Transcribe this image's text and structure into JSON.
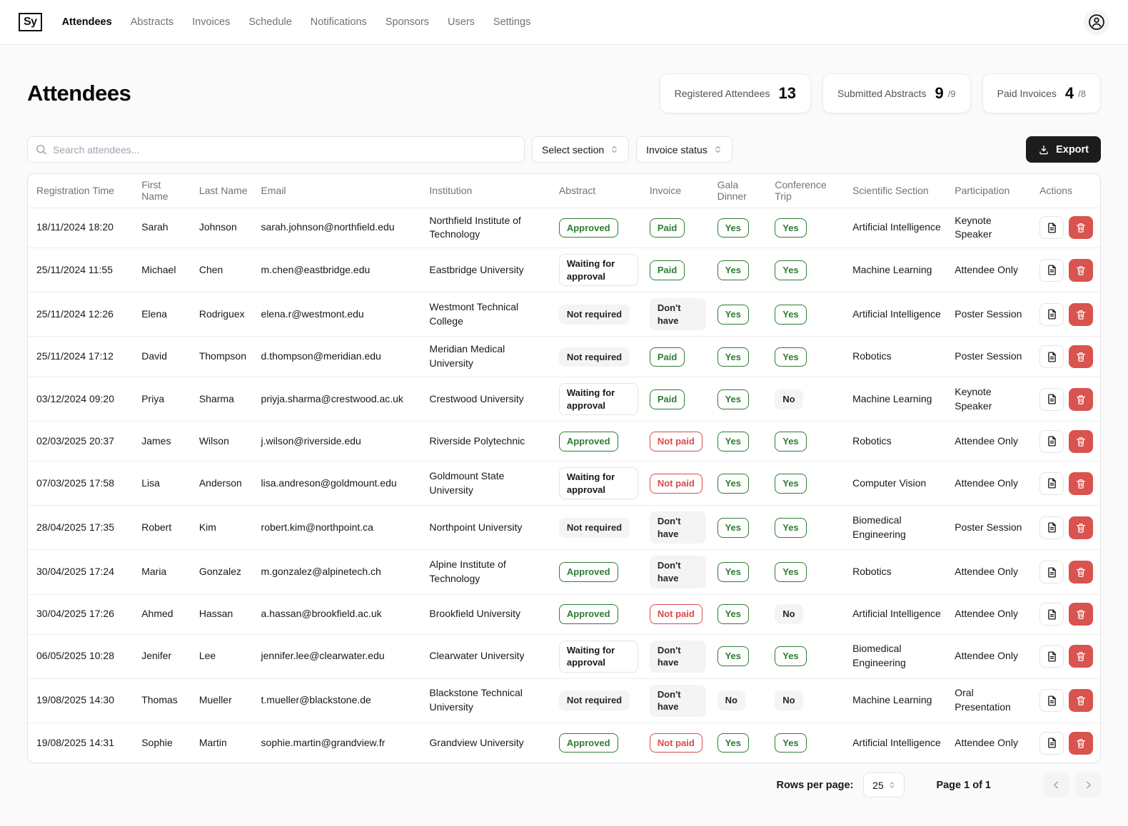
{
  "brand": {
    "logo": "Sy"
  },
  "nav": {
    "items": [
      {
        "label": "Attendees",
        "active": true
      },
      {
        "label": "Abstracts",
        "active": false
      },
      {
        "label": "Invoices",
        "active": false
      },
      {
        "label": "Schedule",
        "active": false
      },
      {
        "label": "Notifications",
        "active": false
      },
      {
        "label": "Sponsors",
        "active": false
      },
      {
        "label": "Users",
        "active": false
      },
      {
        "label": "Settings",
        "active": false
      }
    ]
  },
  "page": {
    "title": "Attendees"
  },
  "stats": [
    {
      "label": "Registered Attendees",
      "value": "13",
      "suffix": ""
    },
    {
      "label": "Submitted Abstracts",
      "value": "9",
      "suffix": "/9"
    },
    {
      "label": "Paid Invoices",
      "value": "4",
      "suffix": "/8"
    }
  ],
  "toolbar": {
    "search_placeholder": "Search attendees...",
    "section_filter_label": "Select section",
    "invoice_filter_label": "Invoice status",
    "export_label": "Export"
  },
  "icons": {
    "logo": "sy-logo",
    "header_right": "user-avatar-icon",
    "search": "search-icon",
    "filters": "up-down-chevrons-icon",
    "export": "download-icon",
    "row_actions": [
      "document-icon",
      "trash-icon"
    ],
    "pager": [
      "chevron-left-icon",
      "chevron-right-icon"
    ]
  },
  "colors": {
    "approved_green": "#2e7d32",
    "not_paid_red": "#d94a4a",
    "trash_button_red": "#d9534f",
    "neutral_badge_bg": "#f4f4f5",
    "export_button_bg": "#1c1c1f"
  },
  "table": {
    "headers": [
      "Registration Time",
      "First Name",
      "Last Name",
      "Email",
      "Institution",
      "Abstract",
      "Invoice",
      "Gala Dinner",
      "Conference Trip",
      "Scientific Section",
      "Participation",
      "Actions"
    ],
    "rows": [
      {
        "registration_time": "18/11/2024 18:20",
        "first_name": "Sarah",
        "last_name": "Johnson",
        "email": "sarah.johnson@northfield.edu",
        "institution": "Northfield Institute of Technology",
        "abstract": "Approved",
        "invoice": "Paid",
        "gala_dinner": "Yes",
        "conference_trip": "Yes",
        "scientific_section": "Artificial Intelligence",
        "participation": "Keynote Speaker"
      },
      {
        "registration_time": "25/11/2024 11:55",
        "first_name": "Michael",
        "last_name": "Chen",
        "email": "m.chen@eastbridge.edu",
        "institution": "Eastbridge University",
        "abstract": "Waiting for approval",
        "invoice": "Paid",
        "gala_dinner": "Yes",
        "conference_trip": "Yes",
        "scientific_section": "Machine Learning",
        "participation": "Attendee Only"
      },
      {
        "registration_time": "25/11/2024 12:26",
        "first_name": "Elena",
        "last_name": "Rodriguex",
        "email": "elena.r@westmont.edu",
        "institution": "Westmont Technical College",
        "abstract": "Not required",
        "invoice": "Don't have",
        "gala_dinner": "Yes",
        "conference_trip": "Yes",
        "scientific_section": "Artificial Intelligence",
        "participation": "Poster Session"
      },
      {
        "registration_time": "25/11/2024 17:12",
        "first_name": "David",
        "last_name": "Thompson",
        "email": "d.thompson@meridian.edu",
        "institution": "Meridian Medical University",
        "abstract": "Not required",
        "invoice": "Paid",
        "gala_dinner": "Yes",
        "conference_trip": "Yes",
        "scientific_section": "Robotics",
        "participation": "Poster Session"
      },
      {
        "registration_time": "03/12/2024 09:20",
        "first_name": "Priya",
        "last_name": "Sharma",
        "email": "priyja.sharma@crestwood.ac.uk",
        "institution": "Crestwood University",
        "abstract": "Waiting for approval",
        "invoice": "Paid",
        "gala_dinner": "Yes",
        "conference_trip": "No",
        "scientific_section": "Machine Learning",
        "participation": "Keynote Speaker"
      },
      {
        "registration_time": "02/03/2025 20:37",
        "first_name": "James",
        "last_name": "Wilson",
        "email": "j.wilson@riverside.edu",
        "institution": "Riverside Polytechnic",
        "abstract": "Approved",
        "invoice": "Not paid",
        "gala_dinner": "Yes",
        "conference_trip": "Yes",
        "scientific_section": "Robotics",
        "participation": "Attendee Only"
      },
      {
        "registration_time": "07/03/2025 17:58",
        "first_name": "Lisa",
        "last_name": "Anderson",
        "email": "lisa.andreson@goldmount.edu",
        "institution": "Goldmount State University",
        "abstract": "Waiting for approval",
        "invoice": "Not paid",
        "gala_dinner": "Yes",
        "conference_trip": "Yes",
        "scientific_section": "Computer Vision",
        "participation": "Attendee Only"
      },
      {
        "registration_time": "28/04/2025 17:35",
        "first_name": "Robert",
        "last_name": "Kim",
        "email": "robert.kim@northpoint.ca",
        "institution": "Northpoint University",
        "abstract": "Not required",
        "invoice": "Don't have",
        "gala_dinner": "Yes",
        "conference_trip": "Yes",
        "scientific_section": "Biomedical Engineering",
        "participation": "Poster Session"
      },
      {
        "registration_time": "30/04/2025 17:24",
        "first_name": "Maria",
        "last_name": "Gonzalez",
        "email": "m.gonzalez@alpinetech.ch",
        "institution": "Alpine Institute of Technology",
        "abstract": "Approved",
        "invoice": "Don't have",
        "gala_dinner": "Yes",
        "conference_trip": "Yes",
        "scientific_section": "Robotics",
        "participation": "Attendee Only"
      },
      {
        "registration_time": "30/04/2025 17:26",
        "first_name": "Ahmed",
        "last_name": "Hassan",
        "email": "a.hassan@brookfield.ac.uk",
        "institution": "Brookfield University",
        "abstract": "Approved",
        "invoice": "Not paid",
        "gala_dinner": "Yes",
        "conference_trip": "No",
        "scientific_section": "Artificial Intelligence",
        "participation": "Attendee Only"
      },
      {
        "registration_time": "06/05/2025 10:28",
        "first_name": "Jenifer",
        "last_name": "Lee",
        "email": "jennifer.lee@clearwater.edu",
        "institution": "Clearwater University",
        "abstract": "Waiting for approval",
        "invoice": "Don't have",
        "gala_dinner": "Yes",
        "conference_trip": "Yes",
        "scientific_section": "Biomedical Engineering",
        "participation": "Attendee Only"
      },
      {
        "registration_time": "19/08/2025 14:30",
        "first_name": "Thomas",
        "last_name": "Mueller",
        "email": "t.mueller@blackstone.de",
        "institution": "Blackstone Technical University",
        "abstract": "Not required",
        "invoice": "Don't have",
        "gala_dinner": "No",
        "conference_trip": "No",
        "scientific_section": "Machine Learning",
        "participation": "Oral Presentation"
      },
      {
        "registration_time": "19/08/2025 14:31",
        "first_name": "Sophie",
        "last_name": "Martin",
        "email": "sophie.martin@grandview.fr",
        "institution": "Grandview University",
        "abstract": "Approved",
        "invoice": "Not paid",
        "gala_dinner": "Yes",
        "conference_trip": "Yes",
        "scientific_section": "Artificial Intelligence",
        "participation": "Attendee Only"
      }
    ]
  },
  "pagination": {
    "rows_per_page_label": "Rows per page:",
    "rows_per_page_value": "25",
    "page_info": "Page 1 of 1"
  }
}
